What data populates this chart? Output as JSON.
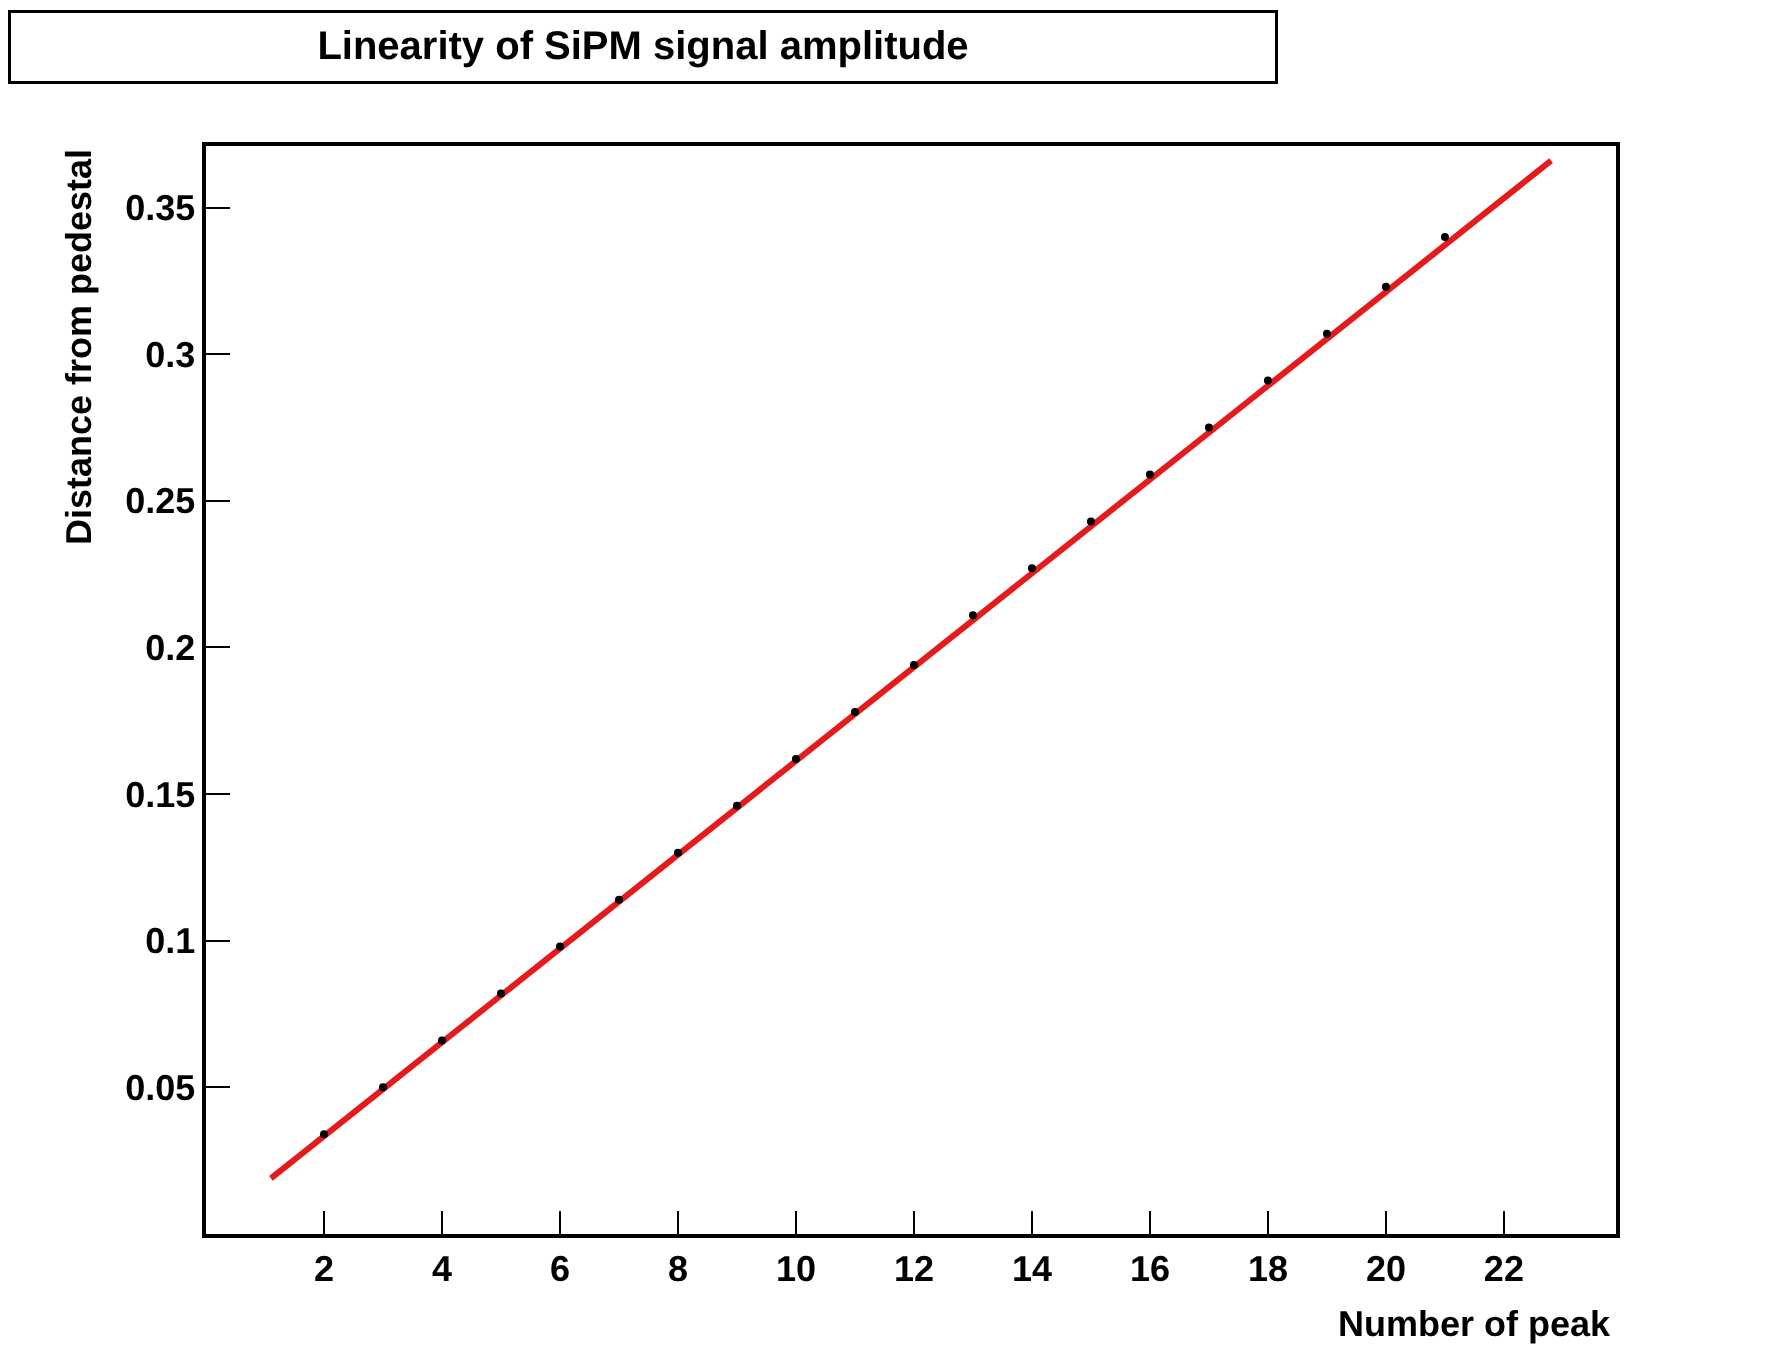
{
  "chart_data": {
    "type": "scatter",
    "title": "Linearity of SiPM signal amplitude",
    "xlabel": "Number of peak",
    "ylabel": "Distance from pedestal",
    "x": [
      2,
      3,
      4,
      5,
      6,
      7,
      8,
      9,
      10,
      11,
      12,
      13,
      14,
      15,
      16,
      17,
      18,
      19,
      20,
      21
    ],
    "series": [
      {
        "marker": "circle",
        "color": "#000000",
        "values": [
          0.034,
          0.05,
          0.066,
          0.082,
          0.098,
          0.114,
          0.13,
          0.146,
          0.162,
          0.178,
          0.194,
          0.211,
          0.227,
          0.243,
          0.259,
          0.275,
          0.291,
          0.307,
          0.323,
          0.34
        ]
      },
      {
        "type": "line",
        "marker": "none",
        "color": "#e41a1c",
        "x": [
          1.1,
          22.8
        ],
        "values": [
          0.019,
          0.366
        ]
      }
    ],
    "xlim": [
      0,
      23.9
    ],
    "xticks": [
      2,
      4,
      6,
      8,
      10,
      12,
      14,
      16,
      18,
      20,
      22
    ],
    "ylim": [
      0,
      0.371
    ],
    "yticks": [
      0.05,
      0.1,
      0.15,
      0.2,
      0.25,
      0.3,
      0.35
    ],
    "grid": false
  }
}
